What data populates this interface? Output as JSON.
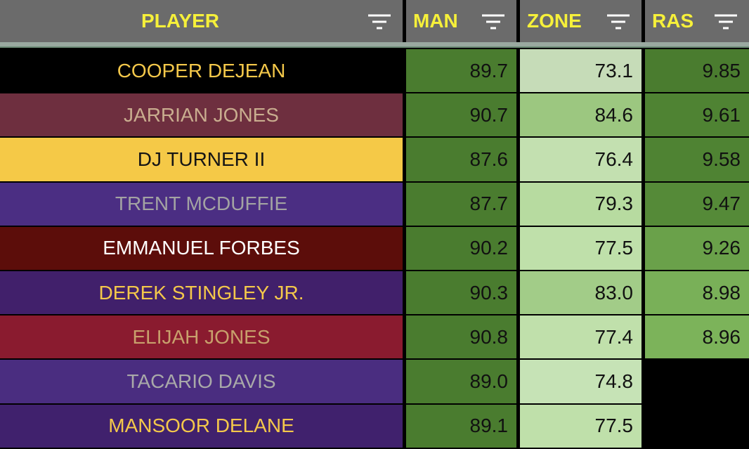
{
  "table": {
    "header": [
      "PLAYER",
      "MAN",
      "ZONE",
      "RAS"
    ],
    "rows": [
      [
        "COOPER DEJEAN",
        "89.7",
        "73.1",
        "9.85"
      ],
      [
        "JARRIAN JONES",
        "90.7",
        "84.6",
        "9.61"
      ],
      [
        "DJ TURNER II",
        "87.6",
        "76.4",
        "9.58"
      ],
      [
        "TRENT MCDUFFIE",
        "87.7",
        "79.3",
        "9.47"
      ],
      [
        "EMMANUEL FORBES",
        "90.2",
        "77.5",
        "9.26"
      ],
      [
        "DEREK STINGLEY JR.",
        "90.3",
        "83.0",
        "8.98"
      ],
      [
        "ELIJAH JONES",
        "90.8",
        "77.4",
        "8.96"
      ],
      [
        "TACARIO DAVIS",
        "89.0",
        "74.8"
      ],
      [
        "MANSOOR DELANE",
        "89.1",
        "77.5"
      ]
    ]
  }
}
